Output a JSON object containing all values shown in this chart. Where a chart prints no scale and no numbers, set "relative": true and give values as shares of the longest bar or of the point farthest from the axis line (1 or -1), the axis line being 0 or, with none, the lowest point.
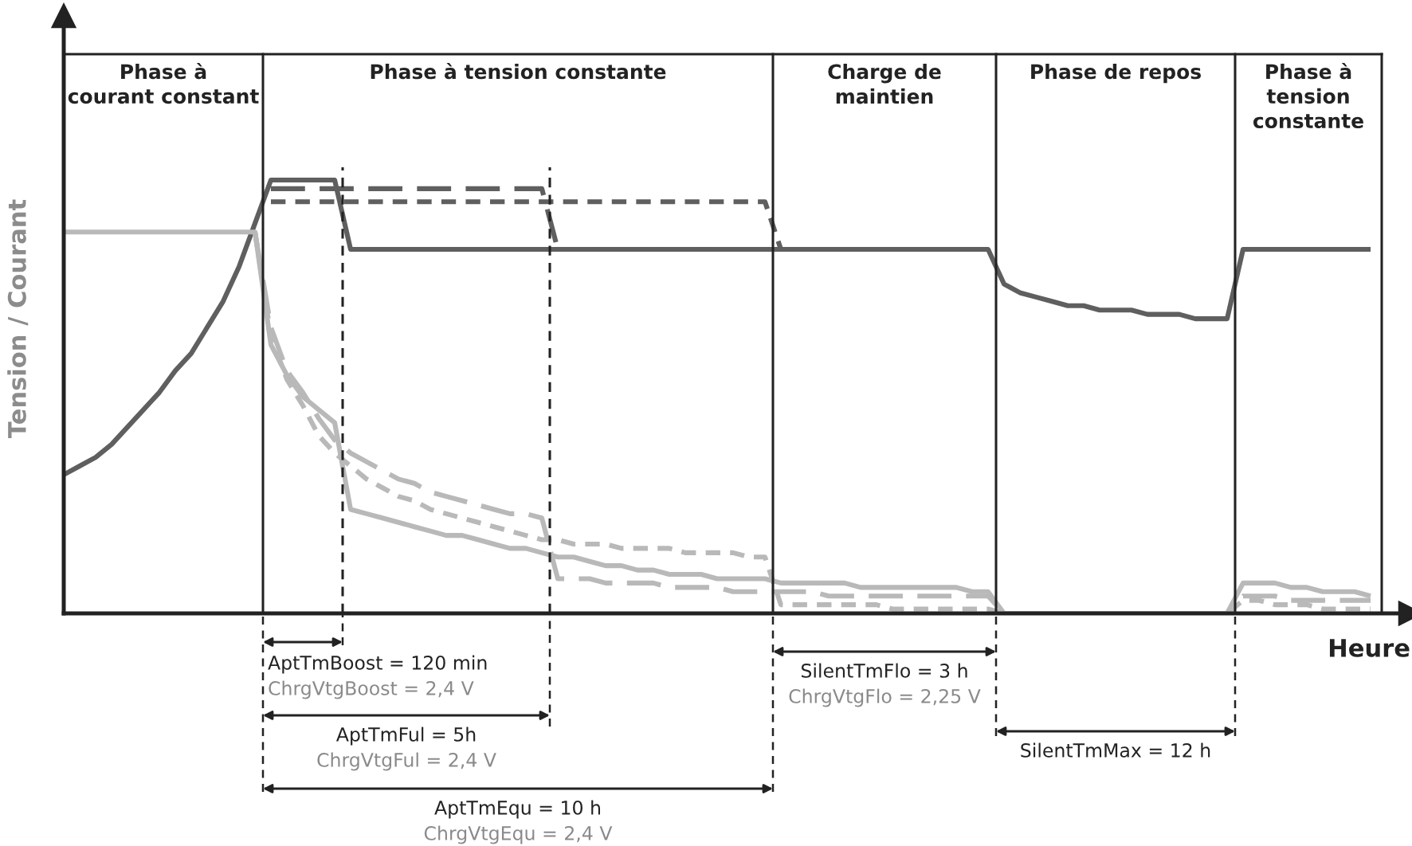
{
  "chart_data": {
    "type": "line",
    "relative": true,
    "xlabel": "Heure",
    "ylabel": "Tension / Courant",
    "grid": false,
    "marker": "none",
    "categories": [
      null,
      null,
      null,
      null,
      null,
      null,
      null,
      null,
      null,
      null,
      null,
      null,
      null,
      null,
      null,
      null,
      null,
      null,
      null,
      null,
      null,
      null,
      null,
      null,
      null,
      null,
      null,
      null,
      null,
      null,
      null,
      null,
      null,
      null,
      null,
      null,
      null,
      null,
      null,
      null,
      null,
      null,
      null,
      null,
      null,
      null,
      null,
      null,
      null,
      null,
      null,
      null,
      null,
      null,
      null,
      null,
      null,
      null,
      null,
      null,
      null,
      null,
      null,
      null,
      null,
      null,
      null,
      null,
      null,
      null,
      null,
      null,
      null,
      null,
      null,
      null,
      null,
      null,
      null,
      null,
      null,
      null,
      null
    ],
    "series": [
      {
        "color": "#5f5f5f",
        "line_style": "solid",
        "values": [
          0.32,
          0.34,
          0.36,
          0.39,
          0.43,
          0.47,
          0.51,
          0.56,
          0.6,
          0.66,
          0.72,
          0.8,
          0.9,
          1,
          1,
          1,
          1,
          1,
          0.84,
          0.84,
          0.84,
          0.84,
          0.84,
          0.84,
          0.84,
          0.84,
          0.84,
          0.84,
          0.84,
          0.84,
          0.84,
          0.84,
          0.84,
          0.84,
          0.84,
          0.84,
          0.84,
          0.84,
          0.84,
          0.84,
          0.84,
          0.84,
          0.84,
          0.84,
          0.84,
          0.84,
          0.84,
          0.84,
          0.84,
          0.84,
          0.84,
          0.84,
          0.84,
          0.84,
          0.84,
          0.84,
          0.84,
          0.84,
          0.84,
          0.76,
          0.74,
          0.73,
          0.72,
          0.71,
          0.71,
          0.7,
          0.7,
          0.7,
          0.69,
          0.69,
          0.69,
          0.68,
          0.68,
          0.68,
          0.84,
          0.84,
          0.84,
          0.84,
          0.84,
          0.84,
          0.84,
          0.84,
          0.84
        ]
      },
      {
        "color": "#5f5f5f",
        "line_style": "dashed",
        "values": [
          null,
          null,
          null,
          null,
          null,
          null,
          null,
          null,
          null,
          null,
          null,
          null,
          null,
          0.98,
          0.98,
          0.98,
          0.98,
          0.98,
          0.98,
          0.98,
          0.98,
          0.98,
          0.98,
          0.98,
          0.98,
          0.98,
          0.98,
          0.98,
          0.98,
          0.98,
          0.98,
          0.84,
          0.84,
          0.84,
          0.84,
          0.84,
          0.84,
          0.84,
          0.84,
          0.84,
          0.84,
          0.84,
          0.84,
          0.84,
          0.84,
          null,
          null,
          null,
          null,
          null,
          null,
          null,
          null,
          null,
          null,
          null,
          null,
          null,
          null,
          null,
          null,
          null,
          null,
          null,
          null,
          null,
          null,
          null,
          null,
          null,
          null,
          null,
          null,
          null,
          null,
          null,
          null,
          null,
          null,
          null,
          null,
          null,
          null
        ]
      },
      {
        "color": "#5f5f5f",
        "line_style": "dotted",
        "values": [
          null,
          null,
          null,
          null,
          null,
          null,
          null,
          null,
          null,
          null,
          null,
          null,
          null,
          0.95,
          0.95,
          0.95,
          0.95,
          0.95,
          0.95,
          0.95,
          0.95,
          0.95,
          0.95,
          0.95,
          0.95,
          0.95,
          0.95,
          0.95,
          0.95,
          0.95,
          0.95,
          0.95,
          0.95,
          0.95,
          0.95,
          0.95,
          0.95,
          0.95,
          0.95,
          0.95,
          0.95,
          0.95,
          0.95,
          0.95,
          0.95,
          0.84,
          null,
          null,
          null,
          null,
          null,
          null,
          null,
          null,
          null,
          null,
          null,
          null,
          null,
          null,
          null,
          null,
          null,
          null,
          null,
          null,
          null,
          null,
          null,
          null,
          null,
          null,
          null,
          null,
          null,
          null,
          null,
          null,
          null,
          null,
          null,
          null,
          null
        ]
      },
      {
        "color": "#b9b9b9",
        "line_style": "solid",
        "values": [
          0.88,
          0.88,
          0.88,
          0.88,
          0.88,
          0.88,
          0.88,
          0.88,
          0.88,
          0.88,
          0.88,
          0.88,
          0.88,
          0.62,
          0.55,
          0.5,
          0.47,
          0.44,
          0.24,
          0.23,
          0.22,
          0.21,
          0.2,
          0.19,
          0.18,
          0.18,
          0.17,
          0.16,
          0.15,
          0.15,
          0.14,
          0.13,
          0.13,
          0.12,
          0.11,
          0.11,
          0.1,
          0.1,
          0.09,
          0.09,
          0.09,
          0.08,
          0.08,
          0.08,
          0.08,
          0.07,
          0.07,
          0.07,
          0.07,
          0.07,
          0.06,
          0.06,
          0.06,
          0.06,
          0.06,
          0.06,
          0.06,
          0.05,
          0.05,
          0,
          0,
          0,
          0,
          0,
          0,
          0,
          0,
          0,
          0,
          0,
          0,
          0,
          0,
          0,
          0.07,
          0.07,
          0.07,
          0.06,
          0.06,
          0.05,
          0.05,
          0.05,
          0.04
        ]
      },
      {
        "color": "#b9b9b9",
        "line_style": "dashed",
        "values": [
          null,
          null,
          null,
          null,
          null,
          null,
          null,
          null,
          null,
          null,
          null,
          null,
          0.88,
          0.66,
          0.56,
          0.51,
          0.45,
          0.4,
          0.37,
          0.35,
          0.33,
          0.31,
          0.3,
          0.28,
          0.27,
          0.26,
          0.25,
          0.24,
          0.23,
          0.23,
          0.22,
          0.08,
          0.08,
          0.08,
          0.07,
          0.07,
          0.07,
          0.07,
          0.06,
          0.06,
          0.06,
          0.06,
          0.05,
          0.05,
          0.05,
          0.05,
          0.05,
          0.05,
          0.04,
          0.04,
          0.04,
          0.04,
          0.04,
          0.04,
          0.04,
          0.04,
          0.04,
          0.04,
          0.04,
          0,
          0,
          0,
          0,
          0,
          0,
          0,
          0,
          0,
          0,
          0,
          0,
          0,
          0,
          0,
          0.04,
          0.04,
          0.04,
          0.03,
          0.03,
          0.03,
          0.03,
          0.03,
          0.03
        ]
      },
      {
        "color": "#b9b9b9",
        "line_style": "dotted",
        "values": [
          null,
          null,
          null,
          null,
          null,
          null,
          null,
          null,
          null,
          null,
          null,
          null,
          0.88,
          0.64,
          0.54,
          0.48,
          0.41,
          0.37,
          0.34,
          0.31,
          0.29,
          0.27,
          0.26,
          0.24,
          0.23,
          0.22,
          0.21,
          0.2,
          0.19,
          0.18,
          0.17,
          0.17,
          0.16,
          0.16,
          0.16,
          0.15,
          0.15,
          0.15,
          0.15,
          0.14,
          0.14,
          0.14,
          0.14,
          0.13,
          0.13,
          0.02,
          0.02,
          0.02,
          0.02,
          0.02,
          0.02,
          0.02,
          0.01,
          0.01,
          0.01,
          0.01,
          0.01,
          0.01,
          0.01,
          0,
          0,
          0,
          0,
          0,
          0,
          0,
          0,
          0,
          0,
          0,
          0,
          0,
          0,
          0,
          0.03,
          0.03,
          0.02,
          0.02,
          0.02,
          0.01,
          0.01,
          0.01,
          0.01
        ]
      }
    ],
    "annotations": [
      "Phase à\ncourant constant",
      "Phase à tension constante",
      "Charge de\nmaintien",
      "Phase de repos",
      "Phase à\ntension\nconstante",
      "AptTmBoost = 120 min",
      "ChrgVtgBoost = 2,4 V",
      "AptTmFul = 5h",
      "ChrgVtgFul = 2,4 V",
      "AptTmEqu = 10 h",
      "ChrgVtgEqu = 2,4 V",
      "SilentTmFlo = 3 h",
      "ChrgVtgFlo = 2,25 V",
      "SilentTmMax = 12 h"
    ]
  }
}
